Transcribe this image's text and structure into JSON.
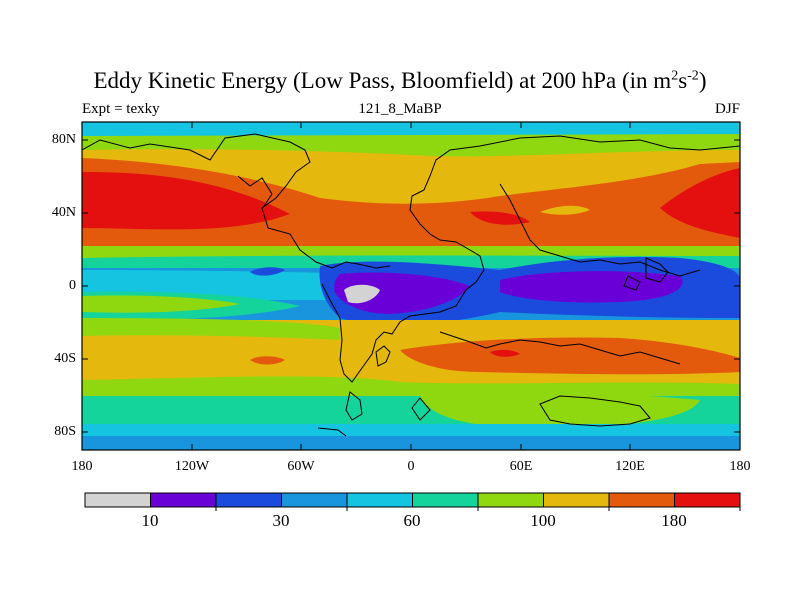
{
  "title": {
    "main": "Eddy Kinetic Energy (Low Pass, Bloomfield) at 200 hPa (in m",
    "sup1": "2",
    "mid": "s",
    "sup2": "-2",
    "end": ")"
  },
  "subtitle": {
    "left": "Expt = texky",
    "center": "121_8_MaBP",
    "right": "DJF"
  },
  "axes": {
    "y_ticks": [
      "80N",
      "40N",
      "0",
      "40S",
      "80S"
    ],
    "x_ticks": [
      "180",
      "120W",
      "60W",
      "0",
      "60E",
      "120E",
      "180"
    ]
  },
  "colorbar": {
    "colors": [
      "#d3d3d3",
      "#6a00d8",
      "#1a4bdc",
      "#1995dd",
      "#14c4e0",
      "#14d49b",
      "#8fd80f",
      "#e5b80e",
      "#e35a0c",
      "#e3100f"
    ],
    "labels": [
      "10",
      "30",
      "60",
      "100",
      "180"
    ]
  }
}
